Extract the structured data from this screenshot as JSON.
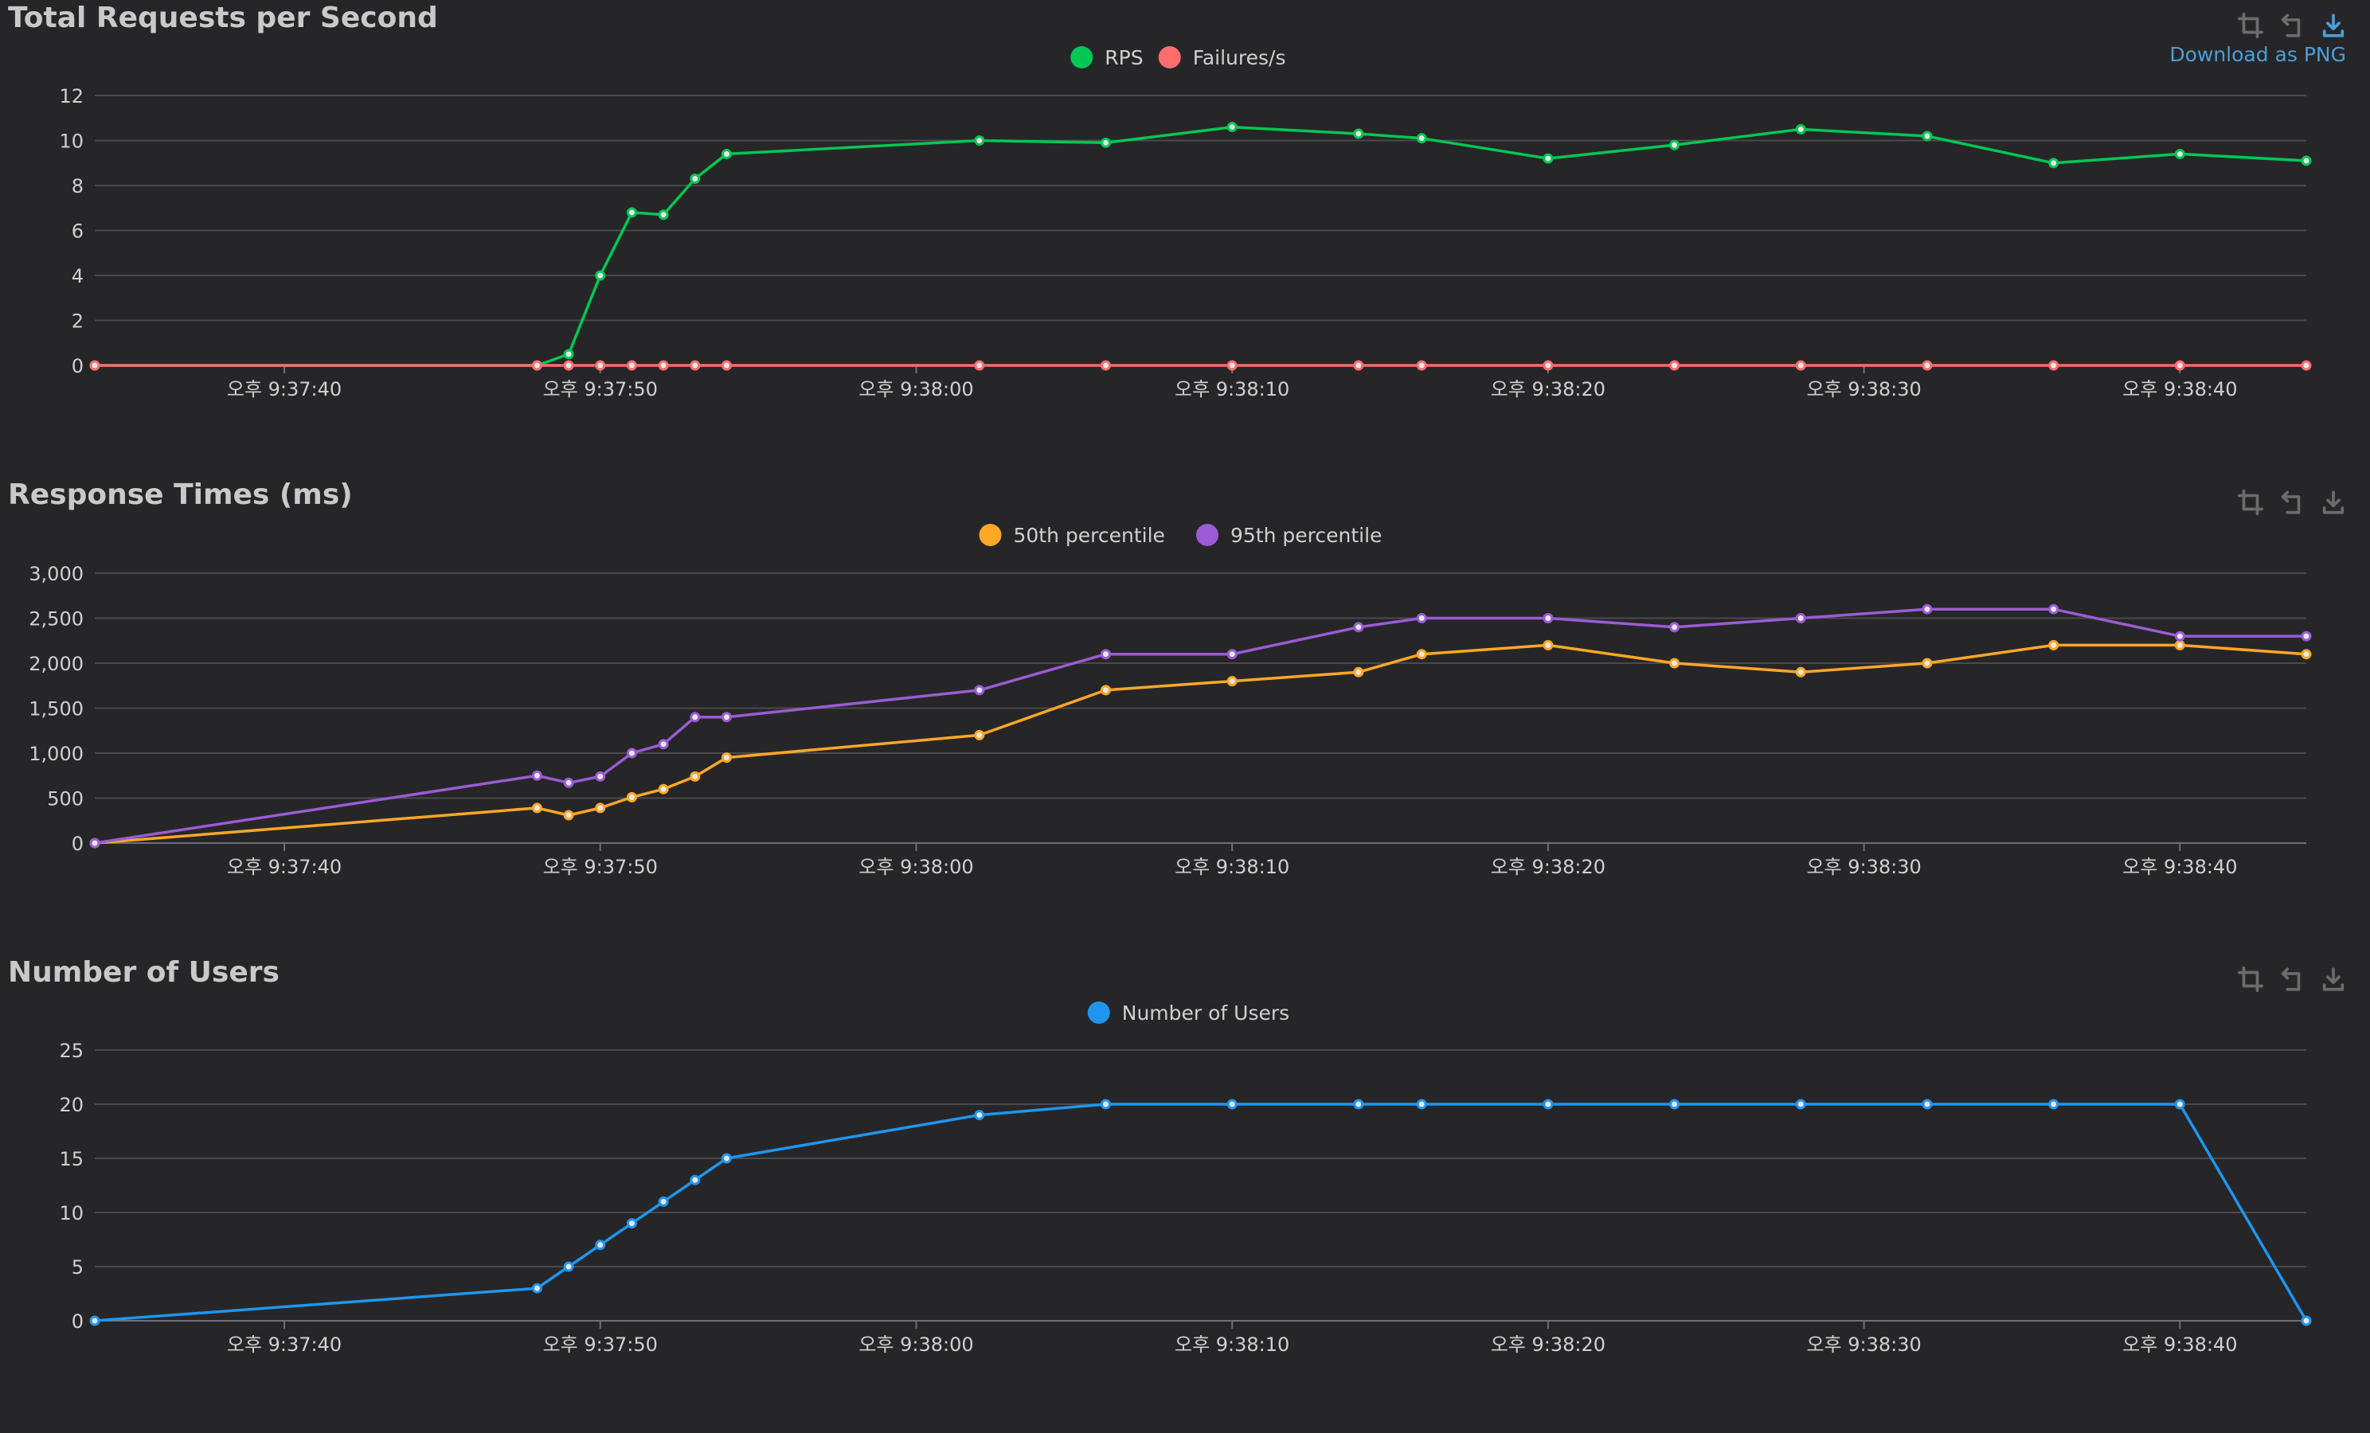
{
  "panels": [
    {
      "title": "Total Requests per Second",
      "tools": {
        "save_label": "Download as PNG"
      }
    },
    {
      "title": "Response Times (ms)"
    },
    {
      "title": "Number of Users"
    }
  ],
  "chart_data": [
    {
      "type": "line",
      "title": "Total Requests per Second",
      "x": [
        "21:37:34",
        "21:37:48",
        "21:37:49",
        "21:37:50",
        "21:37:51",
        "21:37:52",
        "21:37:53",
        "21:37:54",
        "21:38:02",
        "21:38:06",
        "21:38:10",
        "21:38:14",
        "21:38:16",
        "21:38:20",
        "21:38:24",
        "21:38:28",
        "21:38:32",
        "21:38:36",
        "21:38:40",
        "21:38:44"
      ],
      "x_ticks": [
        "오후 9:37:40",
        "오후 9:37:50",
        "오후 9:38:00",
        "오후 9:38:10",
        "오후 9:38:20",
        "오후 9:38:30",
        "오후 9:38:40"
      ],
      "ylim": [
        0,
        12
      ],
      "y_ticks": [
        "0",
        "2",
        "4",
        "6",
        "8",
        "10",
        "12"
      ],
      "legend": "top-center",
      "grid": true,
      "series": [
        {
          "name": "RPS",
          "color": "#00c853",
          "x": [
            "21:37:34",
            "21:37:48",
            "21:37:49",
            "21:37:50",
            "21:37:51",
            "21:37:52",
            "21:37:53",
            "21:37:54",
            "21:38:02",
            "21:38:06",
            "21:38:10",
            "21:38:14",
            "21:38:16",
            "21:38:20",
            "21:38:24",
            "21:38:28",
            "21:38:32",
            "21:38:36",
            "21:38:40",
            "21:38:44"
          ],
          "values": [
            0,
            0,
            0.5,
            4,
            6.8,
            6.7,
            8.3,
            9.4,
            10,
            9.9,
            10.6,
            10.3,
            10.1,
            9.2,
            9.8,
            10.5,
            10.2,
            9,
            9.4,
            9.1
          ]
        },
        {
          "name": "Failures/s",
          "color": "#ff6d6d",
          "x": [
            "21:37:34",
            "21:37:48",
            "21:37:49",
            "21:37:50",
            "21:37:51",
            "21:37:52",
            "21:37:53",
            "21:37:54",
            "21:38:02",
            "21:38:06",
            "21:38:10",
            "21:38:14",
            "21:38:16",
            "21:38:20",
            "21:38:24",
            "21:38:28",
            "21:38:32",
            "21:38:36",
            "21:38:40",
            "21:38:44"
          ],
          "values": [
            0,
            0,
            0,
            0,
            0,
            0,
            0,
            0,
            0,
            0,
            0,
            0,
            0,
            0,
            0,
            0,
            0,
            0,
            0,
            0
          ]
        }
      ]
    },
    {
      "type": "line",
      "title": "Response Times (ms)",
      "x_ticks": [
        "오후 9:37:40",
        "오후 9:37:50",
        "오후 9:38:00",
        "오후 9:38:10",
        "오후 9:38:20",
        "오후 9:38:30",
        "오후 9:38:40"
      ],
      "ylim": [
        0,
        3000
      ],
      "y_ticks": [
        "0",
        "500",
        "1,000",
        "1,500",
        "2,000",
        "2,500",
        "3,000"
      ],
      "legend": "top-center",
      "grid": true,
      "series": [
        {
          "name": "50th percentile",
          "color": "#ffa726",
          "x": [
            "21:37:34",
            "21:37:48",
            "21:37:49",
            "21:37:50",
            "21:37:51",
            "21:37:52",
            "21:37:53",
            "21:37:54",
            "21:38:02",
            "21:38:06",
            "21:38:10",
            "21:38:14",
            "21:38:16",
            "21:38:20",
            "21:38:24",
            "21:38:28",
            "21:38:32",
            "21:38:36",
            "21:38:40",
            "21:38:44"
          ],
          "values": [
            0,
            390,
            310,
            390,
            510,
            600,
            740,
            950,
            1200,
            1700,
            1800,
            1900,
            2100,
            2200,
            2000,
            1900,
            2000,
            2200,
            2200,
            2100
          ]
        },
        {
          "name": "95th percentile",
          "color": "#9c5bd4",
          "x": [
            "21:37:34",
            "21:37:48",
            "21:37:49",
            "21:37:50",
            "21:37:51",
            "21:37:52",
            "21:37:53",
            "21:37:54",
            "21:38:02",
            "21:38:06",
            "21:38:10",
            "21:38:14",
            "21:38:16",
            "21:38:20",
            "21:38:24",
            "21:38:28",
            "21:38:32",
            "21:38:36",
            "21:38:40",
            "21:38:44"
          ],
          "values": [
            0,
            750,
            670,
            740,
            1000,
            1100,
            1400,
            1400,
            1700,
            2100,
            2100,
            2400,
            2500,
            2500,
            2400,
            2500,
            2600,
            2600,
            2300,
            2300
          ]
        }
      ]
    },
    {
      "type": "line",
      "title": "Number of Users",
      "x_ticks": [
        "오후 9:37:40",
        "오후 9:37:50",
        "오후 9:38:00",
        "오후 9:38:10",
        "오후 9:38:20",
        "오후 9:38:30",
        "오후 9:38:40"
      ],
      "ylim": [
        0,
        25
      ],
      "y_ticks": [
        "0",
        "5",
        "10",
        "15",
        "20",
        "25"
      ],
      "legend": "top-center",
      "grid": true,
      "series": [
        {
          "name": "Number of Users",
          "color": "#1e96f0",
          "x": [
            "21:37:34",
            "21:37:48",
            "21:37:49",
            "21:37:50",
            "21:37:51",
            "21:37:52",
            "21:37:53",
            "21:37:54",
            "21:38:02",
            "21:38:06",
            "21:38:10",
            "21:38:14",
            "21:38:16",
            "21:38:20",
            "21:38:24",
            "21:38:28",
            "21:38:32",
            "21:38:36",
            "21:38:40",
            "21:38:44"
          ],
          "values": [
            0,
            3,
            5,
            7,
            9,
            11,
            13,
            15,
            19,
            20,
            20,
            20,
            20,
            20,
            20,
            20,
            20,
            20,
            20,
            0
          ]
        }
      ]
    }
  ]
}
